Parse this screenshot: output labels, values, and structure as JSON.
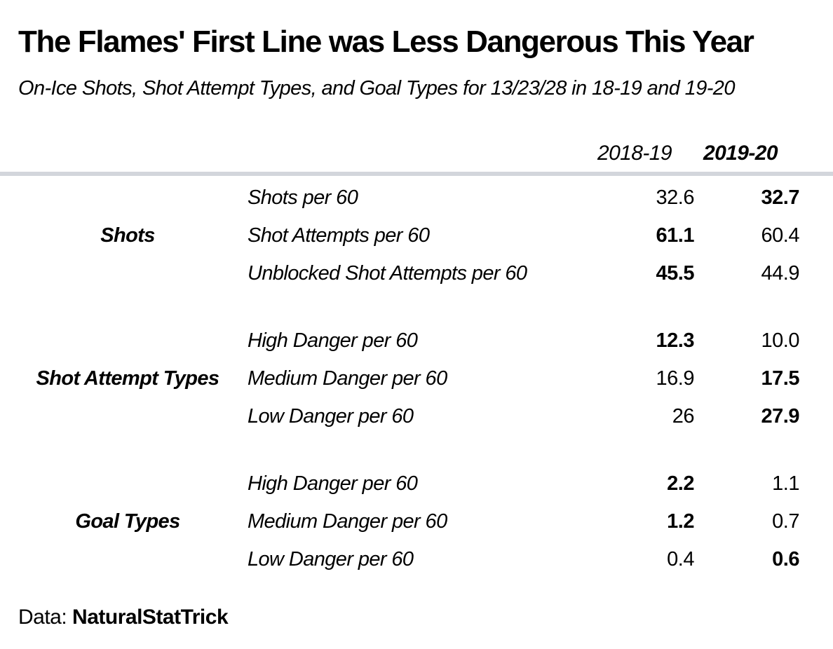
{
  "chart_data": {
    "type": "table",
    "title": "The Flames' First Line was Less Dangerous This Year",
    "subtitle": "On-Ice Shots, Shot Attempt Types, and Goal Types for 13/23/28 in 18-19 and 19-20",
    "columns": [
      "2018-19",
      "2019-20"
    ],
    "groups": [
      {
        "label": "Shots",
        "rows": [
          {
            "label": "Shots per 60",
            "values": [
              "32.6",
              "32.7"
            ],
            "bold": [
              false,
              true
            ]
          },
          {
            "label": "Shot Attempts per 60",
            "values": [
              "61.1",
              "60.4"
            ],
            "bold": [
              true,
              false
            ]
          },
          {
            "label": "Unblocked Shot Attempts per 60",
            "values": [
              "45.5",
              "44.9"
            ],
            "bold": [
              true,
              false
            ]
          }
        ]
      },
      {
        "label": "Shot Attempt Types",
        "rows": [
          {
            "label": "High Danger per 60",
            "values": [
              "12.3",
              "10.0"
            ],
            "bold": [
              true,
              false
            ]
          },
          {
            "label": "Medium Danger per 60",
            "values": [
              "16.9",
              "17.5"
            ],
            "bold": [
              false,
              true
            ]
          },
          {
            "label": "Low Danger per 60",
            "values": [
              "26",
              "27.9"
            ],
            "bold": [
              false,
              true
            ]
          }
        ]
      },
      {
        "label": "Goal Types",
        "rows": [
          {
            "label": "High Danger per 60",
            "values": [
              "2.2",
              "1.1"
            ],
            "bold": [
              true,
              false
            ]
          },
          {
            "label": "Medium Danger per 60",
            "values": [
              "1.2",
              "0.7"
            ],
            "bold": [
              true,
              false
            ]
          },
          {
            "label": "Low Danger per 60",
            "values": [
              "0.4",
              "0.6"
            ],
            "bold": [
              false,
              true
            ]
          }
        ]
      }
    ],
    "source_prefix": "Data: ",
    "source": "NaturalStatTrick"
  }
}
